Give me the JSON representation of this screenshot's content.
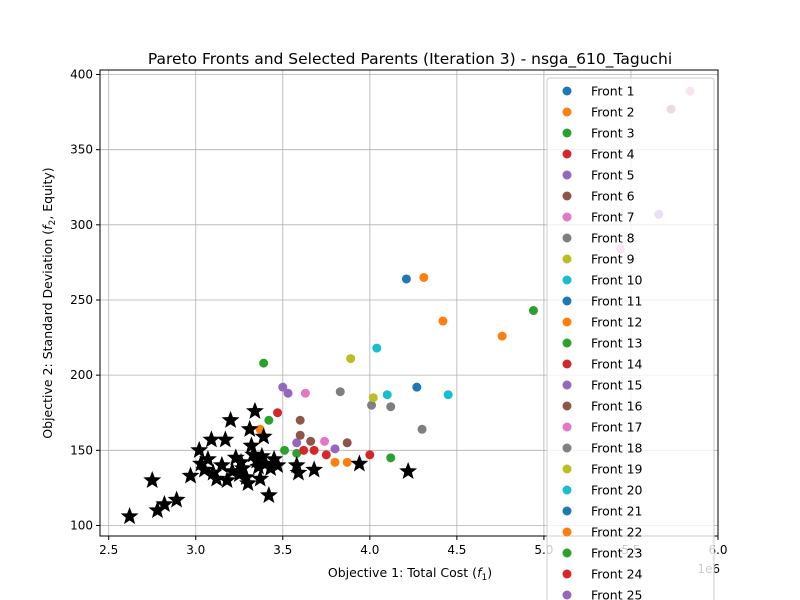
{
  "chart_data": {
    "type": "scatter",
    "title": "Pareto Fronts and Selected Parents (Iteration 3) - nsga_610_Taguchi",
    "xlabel_main": "Objective 1: Total Cost (",
    "xlabel_sym": "f",
    "xlabel_sub": "1",
    "xlabel_end": ")",
    "ylabel_main": "Objective 2: Standard Deviation (",
    "ylabel_sym": "f",
    "ylabel_sub": "2",
    "ylabel_end": ", Equity)",
    "x_offset_label": "1e6",
    "xlim": [
      2.45,
      6.0
    ],
    "ylim": [
      93,
      403
    ],
    "x_ticks": [
      2.5,
      3.0,
      3.5,
      4.0,
      4.5,
      5.0,
      5.5,
      6.0
    ],
    "x_tick_labels": [
      "2.5",
      "3.0",
      "3.5",
      "4.0",
      "4.5",
      "5.0",
      "5.5",
      "6.0"
    ],
    "y_ticks": [
      100,
      150,
      200,
      250,
      300,
      350,
      400
    ],
    "y_tick_labels": [
      "100",
      "150",
      "200",
      "250",
      "300",
      "350",
      "400"
    ],
    "grid": true,
    "legend_position": "upper right",
    "fronts": [
      {
        "name": "Front 1",
        "color": "#1f77b4",
        "points": [
          [
            4.21,
            264
          ],
          [
            4.27,
            192
          ]
        ]
      },
      {
        "name": "Front 2",
        "color": "#ff7f0e",
        "points": [
          [
            4.31,
            265
          ],
          [
            4.42,
            236
          ],
          [
            4.76,
            226
          ],
          [
            3.8,
            142
          ],
          [
            3.87,
            142
          ],
          [
            3.37,
            164
          ]
        ]
      },
      {
        "name": "Front 3",
        "color": "#2ca02c",
        "points": [
          [
            4.94,
            243
          ],
          [
            3.39,
            208
          ],
          [
            3.42,
            170
          ],
          [
            3.51,
            150
          ],
          [
            3.58,
            148
          ],
          [
            4.12,
            145
          ]
        ]
      },
      {
        "name": "Front 4",
        "color": "#d62728",
        "points": [
          [
            3.47,
            175
          ],
          [
            3.62,
            150
          ],
          [
            3.75,
            147
          ],
          [
            4.0,
            147
          ],
          [
            3.68,
            150
          ]
        ]
      },
      {
        "name": "Front 5",
        "color": "#9467bd",
        "points": [
          [
            3.5,
            192
          ],
          [
            3.58,
            155
          ],
          [
            3.8,
            151
          ],
          [
            5.66,
            307
          ]
        ]
      },
      {
        "name": "Front 6",
        "color": "#8c564b",
        "points": [
          [
            3.6,
            170
          ],
          [
            3.6,
            160
          ],
          [
            3.66,
            156
          ],
          [
            3.87,
            155
          ]
        ]
      },
      {
        "name": "Front 7",
        "color": "#e377c2",
        "points": [
          [
            3.63,
            188
          ],
          [
            3.74,
            156
          ],
          [
            5.44,
            284
          ]
        ]
      },
      {
        "name": "Front 8",
        "color": "#7f7f7f",
        "points": [
          [
            3.83,
            189
          ],
          [
            4.01,
            180
          ],
          [
            4.12,
            179
          ],
          [
            4.3,
            164
          ]
        ]
      },
      {
        "name": "Front 9",
        "color": "#bcbd22",
        "points": [
          [
            3.89,
            211
          ],
          [
            4.02,
            185
          ]
        ]
      },
      {
        "name": "Front 10",
        "color": "#17becf",
        "points": [
          [
            4.04,
            218
          ],
          [
            4.1,
            187
          ],
          [
            4.45,
            187
          ]
        ]
      },
      {
        "name": "Front 11",
        "color": "#1f77b4",
        "points": []
      },
      {
        "name": "Front 12",
        "color": "#ff7f0e",
        "points": []
      },
      {
        "name": "Front 13",
        "color": "#2ca02c",
        "points": []
      },
      {
        "name": "Front 14",
        "color": "#d62728",
        "points": []
      },
      {
        "name": "Front 15",
        "color": "#9467bd",
        "points": [
          [
            3.53,
            188
          ]
        ]
      },
      {
        "name": "Front 16",
        "color": "#8c564b",
        "points": [
          [
            5.73,
            377
          ]
        ]
      },
      {
        "name": "Front 17",
        "color": "#e377c2",
        "points": [
          [
            5.84,
            389
          ]
        ]
      },
      {
        "name": "Front 18",
        "color": "#7f7f7f",
        "points": []
      },
      {
        "name": "Front 19",
        "color": "#bcbd22",
        "points": []
      },
      {
        "name": "Front 20",
        "color": "#17becf",
        "points": []
      },
      {
        "name": "Front 21",
        "color": "#1f77b4",
        "points": []
      },
      {
        "name": "Front 22",
        "color": "#ff7f0e",
        "points": []
      },
      {
        "name": "Front 23",
        "color": "#2ca02c",
        "points": []
      },
      {
        "name": "Front 24",
        "color": "#d62728",
        "points": []
      },
      {
        "name": "Front 25",
        "color": "#9467bd",
        "points": []
      }
    ],
    "selected_parents": {
      "fill_color": "#000000",
      "points": [
        [
          2.62,
          106
        ],
        [
          2.75,
          130
        ],
        [
          2.78,
          110
        ],
        [
          2.82,
          114
        ],
        [
          2.89,
          117
        ],
        [
          2.97,
          133
        ],
        [
          3.02,
          150
        ],
        [
          3.03,
          141
        ],
        [
          3.05,
          137
        ],
        [
          3.07,
          144
        ],
        [
          3.09,
          157
        ],
        [
          3.1,
          135
        ],
        [
          3.12,
          131
        ],
        [
          3.15,
          140
        ],
        [
          3.17,
          157
        ],
        [
          3.18,
          130
        ],
        [
          3.2,
          170
        ],
        [
          3.21,
          136
        ],
        [
          3.23,
          145
        ],
        [
          3.25,
          134
        ],
        [
          3.26,
          142
        ],
        [
          3.27,
          138
        ],
        [
          3.29,
          132
        ],
        [
          3.3,
          128
        ],
        [
          3.31,
          164
        ],
        [
          3.32,
          153
        ],
        [
          3.33,
          147
        ],
        [
          3.34,
          176
        ],
        [
          3.35,
          143
        ],
        [
          3.36,
          139
        ],
        [
          3.37,
          131
        ],
        [
          3.38,
          146
        ],
        [
          3.39,
          159
        ],
        [
          3.4,
          141
        ],
        [
          3.42,
          120
        ],
        [
          3.43,
          138
        ],
        [
          3.45,
          144
        ],
        [
          3.47,
          140
        ],
        [
          3.58,
          140
        ],
        [
          3.59,
          135
        ],
        [
          3.68,
          137
        ],
        [
          3.94,
          141
        ],
        [
          4.22,
          136
        ]
      ]
    }
  }
}
